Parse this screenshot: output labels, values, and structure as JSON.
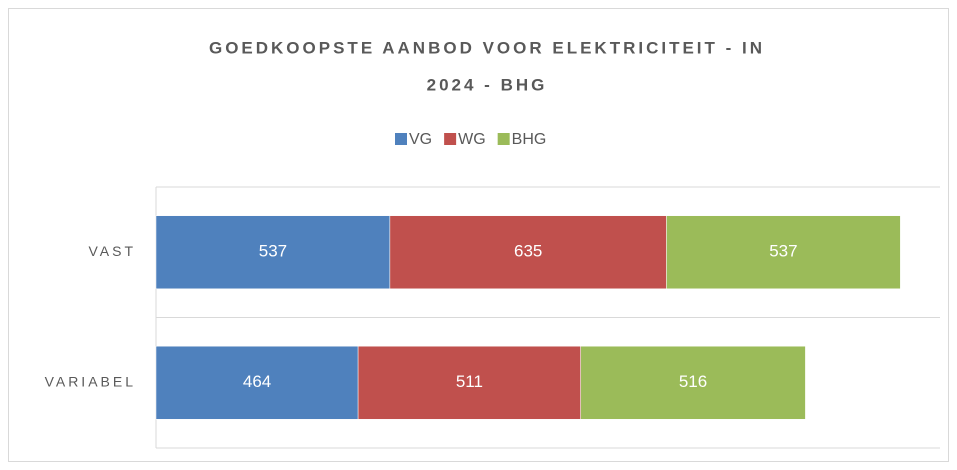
{
  "chart_data": {
    "type": "stacked-barh",
    "title": [
      "GOEDKOOPSTE AANBOD VOOR ELEKTRICITEIT - IN",
      "2024 - BHG"
    ],
    "categories": [
      "VAST",
      "VARIABEL"
    ],
    "series": [
      {
        "name": "VG",
        "color": "#4f81bd",
        "values": [
          537,
          464
        ]
      },
      {
        "name": "WG",
        "color": "#c0504d",
        "values": [
          635,
          511
        ]
      },
      {
        "name": "BHG",
        "color": "#9bbb59",
        "values": [
          537,
          516
        ]
      }
    ],
    "xlim": [
      0,
      1800
    ]
  }
}
